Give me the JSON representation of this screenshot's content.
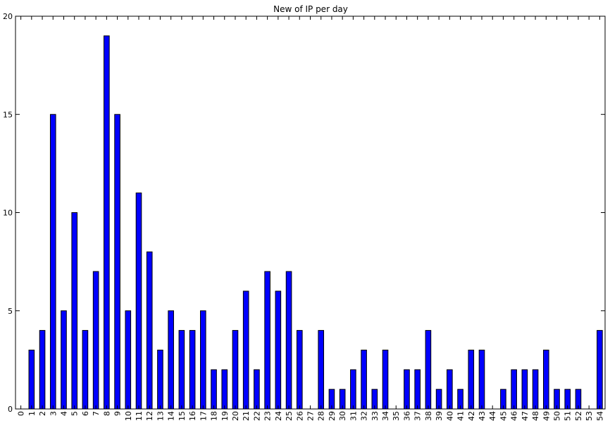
{
  "chart_data": {
    "type": "bar",
    "title": "New of  IP per day",
    "xlabel": "",
    "ylabel": "",
    "ylim": [
      0,
      20
    ],
    "yticks": [
      0,
      5,
      10,
      15,
      20
    ],
    "grid": false,
    "bar_color": "#0000ff",
    "edge_color": "#000000",
    "categories": [
      "0",
      "1",
      "2",
      "3",
      "4",
      "5",
      "6",
      "7",
      "8",
      "9",
      "10",
      "11",
      "12",
      "13",
      "14",
      "15",
      "16",
      "17",
      "18",
      "19",
      "20",
      "21",
      "22",
      "23",
      "24",
      "25",
      "26",
      "27",
      "28",
      "29",
      "30",
      "31",
      "32",
      "33",
      "34",
      "35",
      "36",
      "37",
      "38",
      "39",
      "40",
      "41",
      "42",
      "43",
      "44",
      "45",
      "46",
      "47",
      "48",
      "49",
      "50",
      "51",
      "52",
      "53",
      "54"
    ],
    "values": [
      0,
      3,
      4,
      15,
      5,
      10,
      4,
      7,
      19,
      15,
      5,
      11,
      8,
      3,
      5,
      4,
      4,
      5,
      2,
      2,
      4,
      6,
      2,
      7,
      6,
      7,
      4,
      0,
      4,
      1,
      1,
      2,
      3,
      1,
      3,
      0,
      2,
      2,
      4,
      1,
      2,
      1,
      3,
      3,
      0,
      1,
      2,
      2,
      2,
      3,
      1,
      1,
      1,
      0,
      4
    ]
  }
}
